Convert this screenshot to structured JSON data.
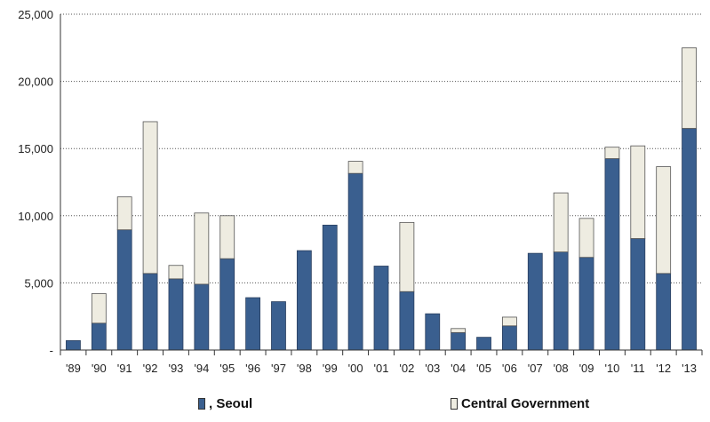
{
  "chart_data": {
    "type": "bar",
    "stacked": true,
    "categories": [
      "'89",
      "'90",
      "'91",
      "'92",
      "'93",
      "'94",
      "'95",
      "'96",
      "'97",
      "'98",
      "'99",
      "'00",
      "'01",
      "'02",
      "'03",
      "'04",
      "'05",
      "'06",
      "'07",
      "'08",
      "'09",
      "'10",
      "'11",
      "'12",
      "'13"
    ],
    "series": [
      {
        "name": "Seoul",
        "color": "#3a5f8f",
        "values": [
          700,
          2000,
          8950,
          5700,
          5300,
          4900,
          6800,
          3900,
          3600,
          7400,
          9300,
          13150,
          6250,
          4350,
          2700,
          1300,
          950,
          1800,
          7200,
          7300,
          6900,
          14250,
          8300,
          5700,
          16500
        ]
      },
      {
        "name": "Central Government",
        "color": "#eeece1",
        "values": [
          0,
          2200,
          2450,
          11300,
          1000,
          5300,
          3200,
          0,
          0,
          0,
          0,
          900,
          0,
          5150,
          0,
          300,
          0,
          650,
          0,
          4400,
          2900,
          850,
          6900,
          7950,
          6000
        ]
      }
    ],
    "yticks": [
      "-",
      "5,000",
      "10,000",
      "15,000",
      "20,000",
      "25,000"
    ],
    "ylim": [
      0,
      25000
    ],
    "grid": true,
    "legend_position": "bottom"
  },
  "legend": {
    "seoul_label": ", Seoul",
    "central_label": "Central Government"
  }
}
